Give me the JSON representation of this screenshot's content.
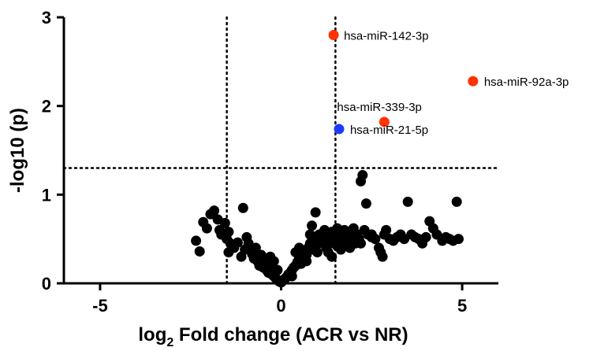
{
  "chart_data": {
    "type": "scatter",
    "title": "",
    "xlabel_prefix": "log",
    "xlabel_sub": "2",
    "xlabel_rest": " Fold change (ACR vs NR)",
    "ylabel": "-log10 (p)",
    "xlim": [
      -6,
      6
    ],
    "ylim": [
      0,
      3
    ],
    "x_ticks": [
      -5,
      0,
      5
    ],
    "x_tick_labels": [
      "-5",
      "0",
      "5"
    ],
    "y_ticks": [
      0,
      1,
      2,
      3
    ],
    "y_tick_labels": [
      "0",
      "1",
      "2",
      "3"
    ],
    "grid": false,
    "thresholds": {
      "x": [
        -1.5,
        1.5
      ],
      "y": 1.3
    },
    "colors": {
      "highlight_up": "#ff3300",
      "highlight_down": "#1a3cff",
      "background": "#000000"
    },
    "highlighted": [
      {
        "label": "hsa-miR-142-3p",
        "x": 1.45,
        "y": 2.8,
        "color": "#ff3300"
      },
      {
        "label": "hsa-miR-92a-3p",
        "x": 5.3,
        "y": 2.28,
        "color": "#ff3300"
      },
      {
        "label": "hsa-miR-339-3p",
        "x": 2.85,
        "y": 1.82,
        "color": "#ff3300"
      },
      {
        "label": "hsa-miR-21-5p",
        "x": 1.6,
        "y": 1.74,
        "color": "#1a3cff"
      }
    ],
    "points": [
      [
        -2.35,
        0.48
      ],
      [
        -2.25,
        0.36
      ],
      [
        -2.15,
        0.69
      ],
      [
        -2.05,
        0.62
      ],
      [
        -1.95,
        0.78
      ],
      [
        -1.85,
        0.82
      ],
      [
        -1.75,
        0.72
      ],
      [
        -1.7,
        0.6
      ],
      [
        -1.65,
        0.55
      ],
      [
        -1.55,
        0.68
      ],
      [
        -1.5,
        0.5
      ],
      [
        -1.45,
        0.58
      ],
      [
        -1.4,
        0.45
      ],
      [
        -1.45,
        0.35
      ],
      [
        -1.3,
        0.4
      ],
      [
        -1.2,
        0.46
      ],
      [
        -1.1,
        0.3
      ],
      [
        -1.05,
        0.85
      ],
      [
        -1.0,
        0.38
      ],
      [
        -0.95,
        0.52
      ],
      [
        -0.9,
        0.45
      ],
      [
        -0.85,
        0.4
      ],
      [
        -0.8,
        0.33
      ],
      [
        -0.75,
        0.28
      ],
      [
        -0.7,
        0.4
      ],
      [
        -0.65,
        0.25
      ],
      [
        -0.6,
        0.2
      ],
      [
        -0.55,
        0.32
      ],
      [
        -0.5,
        0.18
      ],
      [
        -0.45,
        0.25
      ],
      [
        -0.4,
        0.15
      ],
      [
        -0.35,
        0.12
      ],
      [
        -0.3,
        0.2
      ],
      [
        -0.25,
        0.1
      ],
      [
        -0.2,
        0.08
      ],
      [
        -0.15,
        0.06
      ],
      [
        -0.1,
        0.04
      ],
      [
        -0.05,
        0.02
      ],
      [
        0.0,
        0.01
      ],
      [
        0.05,
        0.03
      ],
      [
        0.1,
        0.05
      ],
      [
        0.15,
        0.07
      ],
      [
        0.2,
        0.1
      ],
      [
        0.25,
        0.12
      ],
      [
        0.3,
        0.15
      ],
      [
        0.35,
        0.18
      ],
      [
        0.4,
        0.2
      ],
      [
        0.45,
        0.24
      ],
      [
        0.5,
        0.28
      ],
      [
        0.55,
        0.22
      ],
      [
        0.6,
        0.3
      ],
      [
        0.65,
        0.35
      ],
      [
        0.7,
        0.32
      ],
      [
        0.75,
        0.4
      ],
      [
        0.8,
        0.45
      ],
      [
        0.85,
        0.38
      ],
      [
        0.9,
        0.5
      ],
      [
        0.95,
        0.42
      ],
      [
        1.0,
        0.48
      ],
      [
        1.05,
        0.55
      ],
      [
        1.1,
        0.52
      ],
      [
        1.15,
        0.45
      ],
      [
        1.2,
        0.6
      ],
      [
        1.25,
        0.4
      ],
      [
        1.3,
        0.35
      ],
      [
        1.35,
        0.5
      ],
      [
        1.4,
        0.58
      ],
      [
        1.45,
        0.45
      ],
      [
        1.5,
        0.55
      ],
      [
        1.55,
        0.42
      ],
      [
        1.6,
        0.5
      ],
      [
        1.65,
        0.38
      ],
      [
        1.7,
        0.52
      ],
      [
        1.75,
        0.6
      ],
      [
        1.8,
        0.45
      ],
      [
        1.85,
        0.55
      ],
      [
        1.9,
        0.4
      ],
      [
        1.95,
        0.48
      ],
      [
        2.0,
        0.62
      ],
      [
        2.1,
        0.55
      ],
      [
        2.15,
        0.5
      ],
      [
        2.2,
        0.45
      ],
      [
        2.25,
        1.22
      ],
      [
        2.2,
        1.15
      ],
      [
        2.3,
        0.6
      ],
      [
        2.35,
        0.9
      ],
      [
        2.4,
        0.55
      ],
      [
        2.5,
        0.52
      ],
      [
        2.6,
        0.5
      ],
      [
        2.7,
        0.4
      ],
      [
        2.75,
        0.35
      ],
      [
        2.8,
        0.3
      ],
      [
        2.85,
        0.55
      ],
      [
        2.9,
        0.6
      ],
      [
        3.0,
        0.5
      ],
      [
        3.1,
        0.48
      ],
      [
        3.2,
        0.52
      ],
      [
        3.3,
        0.55
      ],
      [
        3.4,
        0.5
      ],
      [
        3.5,
        0.92
      ],
      [
        3.6,
        0.55
      ],
      [
        3.7,
        0.52
      ],
      [
        3.8,
        0.5
      ],
      [
        3.9,
        0.45
      ],
      [
        4.0,
        0.52
      ],
      [
        4.1,
        0.7
      ],
      [
        4.2,
        0.62
      ],
      [
        4.3,
        0.55
      ],
      [
        4.45,
        0.48
      ],
      [
        4.55,
        0.52
      ],
      [
        4.65,
        0.5
      ],
      [
        4.75,
        0.48
      ],
      [
        4.85,
        0.92
      ],
      [
        4.9,
        0.5
      ],
      [
        1.7,
        0.55
      ],
      [
        0.95,
        0.8
      ],
      [
        0.85,
        0.65
      ],
      [
        1.55,
        0.62
      ],
      [
        0.5,
        0.4
      ],
      [
        0.4,
        0.35
      ],
      [
        -0.2,
        0.25
      ],
      [
        -0.3,
        0.3
      ],
      [
        1.2,
        0.48
      ],
      [
        1.3,
        0.55
      ],
      [
        0.8,
        0.55
      ],
      [
        1.0,
        0.35
      ],
      [
        1.4,
        0.3
      ],
      [
        0.7,
        0.25
      ],
      [
        2.5,
        0.55
      ],
      [
        2.05,
        0.45
      ],
      [
        1.95,
        0.58
      ],
      [
        0.3,
        0.08
      ],
      [
        -0.1,
        0.15
      ]
    ]
  }
}
